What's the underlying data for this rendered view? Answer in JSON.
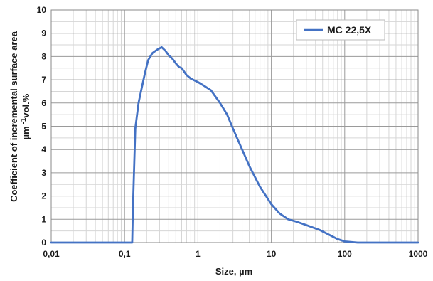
{
  "chart_data": {
    "type": "line",
    "xscale": "log",
    "xlim": [
      0.01,
      1000
    ],
    "ylim": [
      0,
      10
    ],
    "xlabel": "Size, µm",
    "ylabel_line1": "Coefficient of incremental surface area",
    "ylabel_line2_prefix": "µm",
    "ylabel_line2_sup": " -1",
    "ylabel_line2_suffix": "vol.%",
    "x_ticks": [
      {
        "value": 0.01,
        "label": "0,01"
      },
      {
        "value": 0.1,
        "label": "0,1"
      },
      {
        "value": 1,
        "label": "1"
      },
      {
        "value": 10,
        "label": "10"
      },
      {
        "value": 100,
        "label": "100"
      },
      {
        "value": 1000,
        "label": "1000"
      }
    ],
    "y_ticks": [
      0,
      1,
      2,
      3,
      4,
      5,
      6,
      7,
      8,
      9,
      10
    ],
    "grid": true,
    "legend_position": "top-right",
    "series": [
      {
        "name": "MC 22,5X",
        "color": "#4472c4",
        "points": [
          [
            0.01,
            0
          ],
          [
            0.1,
            0
          ],
          [
            0.127,
            0
          ],
          [
            0.13,
            1.5
          ],
          [
            0.14,
            4.9
          ],
          [
            0.155,
            6.0
          ],
          [
            0.17,
            6.6
          ],
          [
            0.19,
            7.3
          ],
          [
            0.21,
            7.85
          ],
          [
            0.24,
            8.15
          ],
          [
            0.28,
            8.3
          ],
          [
            0.32,
            8.4
          ],
          [
            0.36,
            8.25
          ],
          [
            0.4,
            8.05
          ],
          [
            0.45,
            7.9
          ],
          [
            0.5,
            7.7
          ],
          [
            0.55,
            7.55
          ],
          [
            0.6,
            7.5
          ],
          [
            0.7,
            7.2
          ],
          [
            0.8,
            7.05
          ],
          [
            1.0,
            6.9
          ],
          [
            1.2,
            6.75
          ],
          [
            1.5,
            6.55
          ],
          [
            2.0,
            6.0
          ],
          [
            2.5,
            5.5
          ],
          [
            3.0,
            4.9
          ],
          [
            4.0,
            4.0
          ],
          [
            5.0,
            3.3
          ],
          [
            7.0,
            2.4
          ],
          [
            10,
            1.65
          ],
          [
            13,
            1.25
          ],
          [
            17,
            1.0
          ],
          [
            22,
            0.9
          ],
          [
            30,
            0.75
          ],
          [
            45,
            0.55
          ],
          [
            60,
            0.35
          ],
          [
            80,
            0.15
          ],
          [
            100,
            0.05
          ],
          [
            150,
            0
          ],
          [
            1000,
            0
          ]
        ]
      }
    ]
  }
}
